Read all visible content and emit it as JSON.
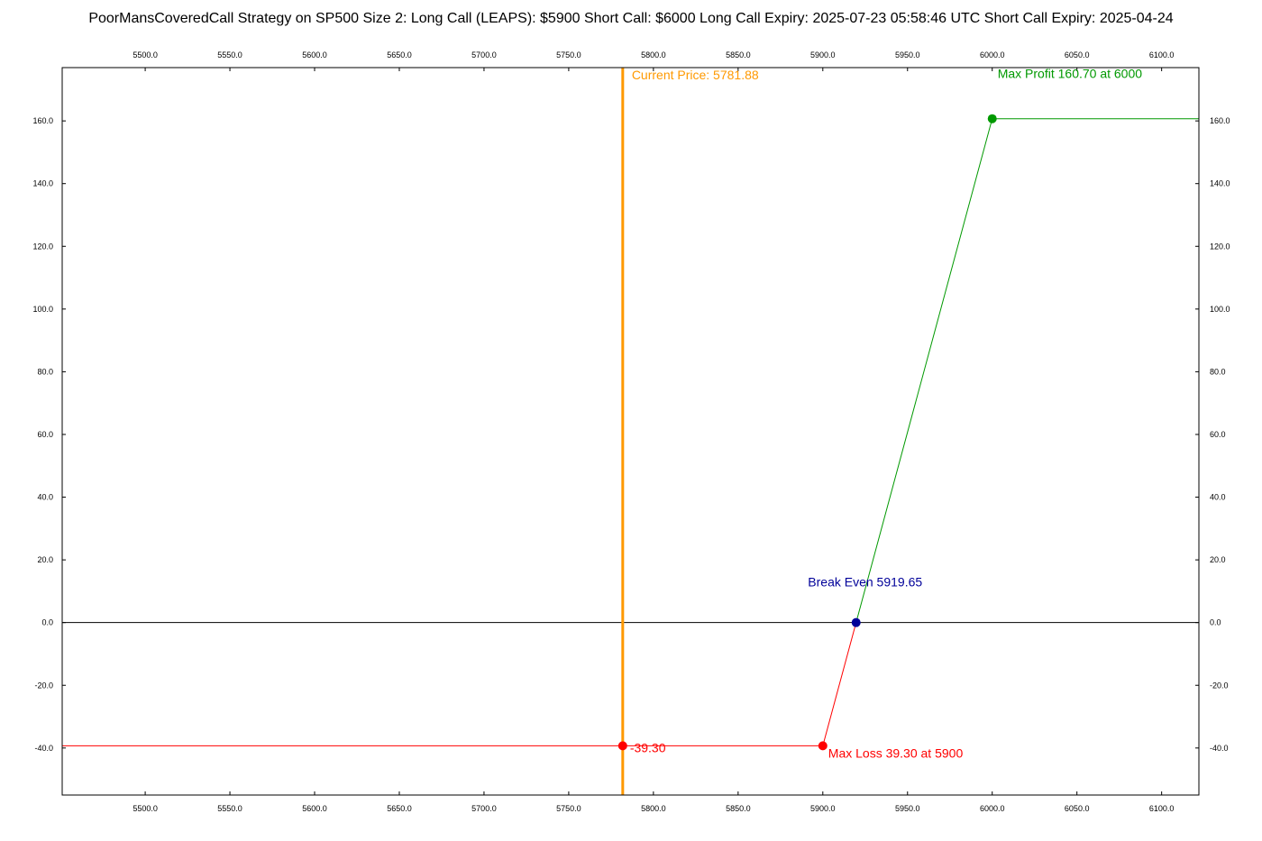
{
  "chart_data": {
    "type": "line",
    "title": "PoorMansCoveredCall Strategy on SP500 Size 2:  Long Call (LEAPS): $5900  Short Call: $6000  Long Call Expiry: 2025-07-23 05:58:46 UTC  Short Call Expiry: 2025-04-24",
    "xlim": [
      5451,
      6122
    ],
    "ylim": [
      -55,
      177
    ],
    "x_ticks": [
      5500,
      5550,
      5600,
      5650,
      5700,
      5750,
      5800,
      5850,
      5900,
      5950,
      6000,
      6050,
      6100
    ],
    "x_tick_labels": [
      "5500.0",
      "5550.0",
      "5600.0",
      "5650.0",
      "5700.0",
      "5750.0",
      "5800.0",
      "5850.0",
      "5900.0",
      "5950.0",
      "6000.0",
      "6050.0",
      "6100.0"
    ],
    "y_ticks": [
      -40,
      -20,
      0,
      20,
      40,
      60,
      80,
      100,
      120,
      140,
      160
    ],
    "y_tick_labels": [
      "-40.0",
      "-20.0",
      "0.0",
      "20.0",
      "40.0",
      "60.0",
      "80.0",
      "100.0",
      "120.0",
      "140.0",
      "160.0"
    ],
    "grid": false,
    "series": [
      {
        "color": "#ff0000",
        "points": [
          [
            5451,
            -39.3
          ],
          [
            5900,
            -39.3
          ],
          [
            5919.65,
            0
          ]
        ]
      },
      {
        "color": "#009900",
        "points": [
          [
            5919.65,
            0
          ],
          [
            6000,
            160.7
          ],
          [
            6122,
            160.7
          ]
        ]
      }
    ],
    "zero_line": {
      "y": 0,
      "color": "#000000"
    },
    "current_price": {
      "x": 5781.88,
      "label": "Current Price: 5781.88",
      "color": "#ff9900"
    },
    "markers": [
      {
        "x": 5781.88,
        "y": -39.3,
        "color": "#ff0000",
        "label": "-39.30",
        "anchor": "right-middle"
      },
      {
        "x": 5900,
        "y": -39.3,
        "color": "#ff0000",
        "label": "Max Loss 39.30 at 5900",
        "anchor": "right-below"
      },
      {
        "x": 5919.65,
        "y": 0,
        "color": "#000099",
        "label": "Break Even  5919.65",
        "anchor": "above-center"
      },
      {
        "x": 6000,
        "y": 160.7,
        "color": "#009900",
        "label": "Max Profit 160.70 at 6000",
        "anchor": "above-right"
      }
    ]
  }
}
